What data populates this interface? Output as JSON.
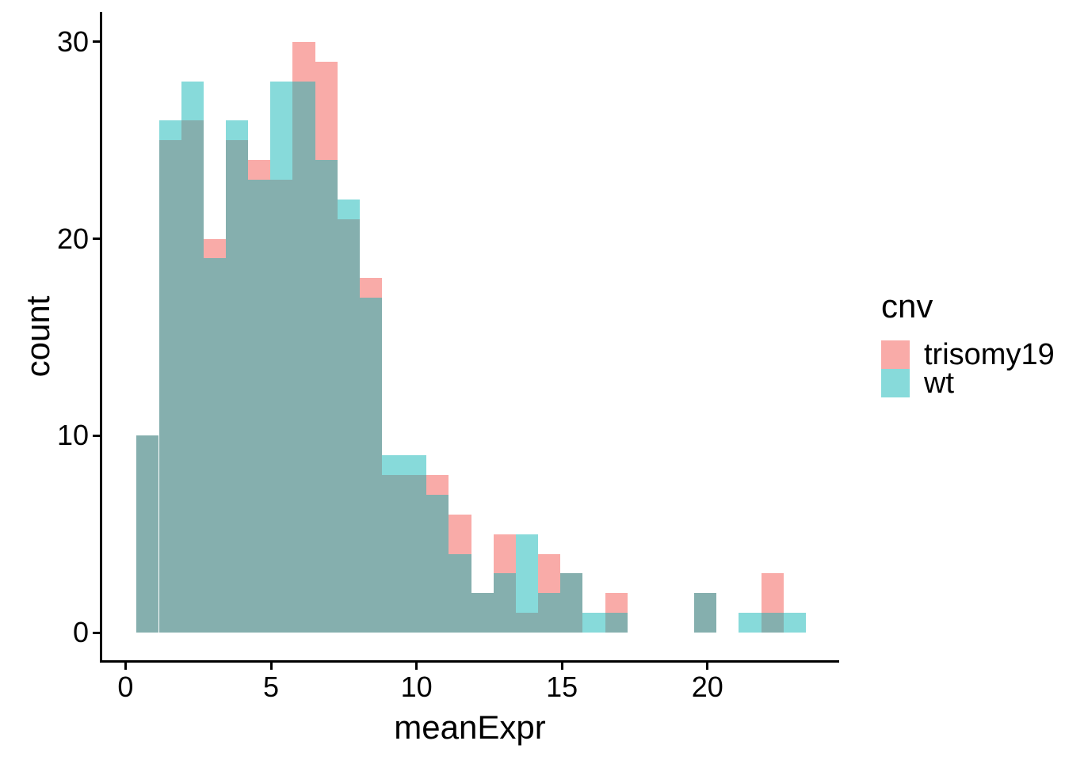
{
  "figure": {
    "background": "#FFFFFF",
    "text_color": "#000000",
    "axis_color": "#000000"
  },
  "chart_data": {
    "type": "histogram",
    "title": "",
    "xlabel": "meanExpr",
    "ylabel": "count",
    "grid": "off",
    "legend": {
      "title": "cnv",
      "position": "right",
      "entries": [
        {
          "label": "trisomy19",
          "color": "#F9ABA8"
        },
        {
          "label": "wt",
          "color": "#87DADA"
        }
      ]
    },
    "overlap_color": "#85AFAE",
    "x_ticks": [
      0,
      5,
      10,
      15,
      20
    ],
    "y_ticks": [
      0,
      10,
      20,
      30
    ],
    "xlim": [
      -0.85,
      24.55
    ],
    "ylim": [
      0,
      31.6
    ],
    "bins": {
      "start": 0.38,
      "width": 0.7667,
      "count": 30
    },
    "series": [
      {
        "name": "trisomy19",
        "color": "#F9ABA8",
        "counts": [
          10,
          25,
          26,
          20,
          25,
          24,
          23,
          30,
          29,
          21,
          18,
          8,
          8,
          8,
          6,
          2,
          5,
          1,
          4,
          3,
          0,
          2,
          0,
          0,
          0,
          2,
          0,
          0,
          3,
          0
        ]
      },
      {
        "name": "wt",
        "color": "#87DADA",
        "counts": [
          10,
          26,
          28,
          19,
          26,
          23,
          28,
          28,
          24,
          22,
          17,
          9,
          9,
          7,
          4,
          2,
          3,
          5,
          2,
          3,
          1,
          1,
          0,
          0,
          0,
          2,
          0,
          1,
          1,
          1
        ]
      }
    ]
  }
}
